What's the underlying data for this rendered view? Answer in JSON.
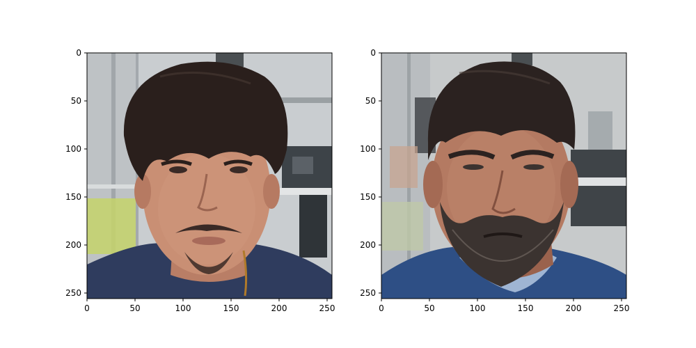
{
  "figure": {
    "panels": [
      {
        "id": "left",
        "image_description": "Photograph of a young man with dark shaggy hair, mustache and goatee, wearing a navy sweater, in an office with glass partitions.",
        "palette": {
          "background": "#c9cdd0",
          "hair": "#2a1f1c",
          "skin": "#c98f74",
          "skin_shadow": "#a9705a",
          "beard": "#3a2a26",
          "shirt": "#2f3c5e",
          "office_green": "#c6d46a",
          "office_dark": "#3d4348"
        },
        "axes": {
          "x_ticks": [
            "0",
            "50",
            "100",
            "150",
            "200",
            "250"
          ],
          "y_ticks": [
            "0",
            "50",
            "100",
            "150",
            "200",
            "250"
          ],
          "xlim": [
            0,
            255
          ],
          "ylim": [
            255,
            0
          ]
        }
      },
      {
        "id": "right",
        "image_description": "Photograph of a man with dark hair and a thick salt-and-pepper beard, wearing a blue sweater over a light shirt, in the same office.",
        "palette": {
          "background": "#c7cacb",
          "hair": "#2b2220",
          "skin": "#b47a62",
          "skin_shadow": "#8f5a47",
          "beard": "#3b3330",
          "shirt": "#2e4f85",
          "collar": "#9fb5d3",
          "office_green": "#bfc8a8",
          "office_dark": "#3f4448"
        },
        "axes": {
          "x_ticks": [
            "0",
            "50",
            "100",
            "150",
            "200",
            "250"
          ],
          "y_ticks": [
            "0",
            "50",
            "100",
            "150",
            "200",
            "250"
          ],
          "xlim": [
            0,
            255
          ],
          "ylim": [
            255,
            0
          ]
        }
      }
    ]
  }
}
